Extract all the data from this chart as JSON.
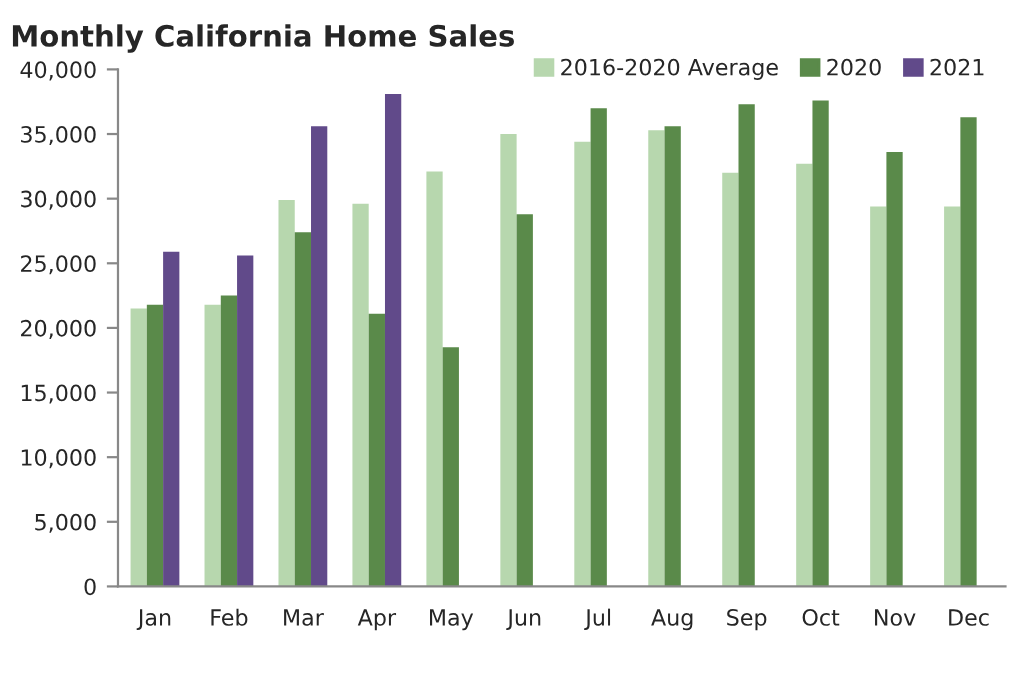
{
  "chart_data": {
    "type": "bar",
    "title": "Monthly California Home Sales",
    "categories": [
      "Jan",
      "Feb",
      "Mar",
      "Apr",
      "May",
      "Jun",
      "Jul",
      "Aug",
      "Sep",
      "Oct",
      "Nov",
      "Dec"
    ],
    "series": [
      {
        "name": "2016-2020 Average",
        "color": "#b7d7ae",
        "values": [
          21500,
          21800,
          29900,
          29600,
          32100,
          35000,
          34400,
          35300,
          32000,
          32700,
          29400,
          29400
        ]
      },
      {
        "name": "2020",
        "color": "#5a8a4a",
        "values": [
          21800,
          22500,
          27400,
          21100,
          18500,
          28800,
          37000,
          35600,
          37300,
          37600,
          33600,
          36300
        ]
      },
      {
        "name": "2021",
        "color": "#614a8a",
        "values": [
          25900,
          25600,
          35600,
          38100,
          null,
          null,
          null,
          null,
          null,
          null,
          null,
          null
        ]
      }
    ],
    "ylim": [
      0,
      40000
    ],
    "yticks": [
      {
        "value": 0,
        "label": "0"
      },
      {
        "value": 5000,
        "label": "5,000"
      },
      {
        "value": 10000,
        "label": "10,000"
      },
      {
        "value": 15000,
        "label": "15,000"
      },
      {
        "value": 20000,
        "label": "20,000"
      },
      {
        "value": 25000,
        "label": "25,000"
      },
      {
        "value": 30000,
        "label": "30,000"
      },
      {
        "value": 35000,
        "label": "35,000"
      },
      {
        "value": 40000,
        "label": "40,000"
      }
    ],
    "legend": "top right",
    "grid": false
  }
}
